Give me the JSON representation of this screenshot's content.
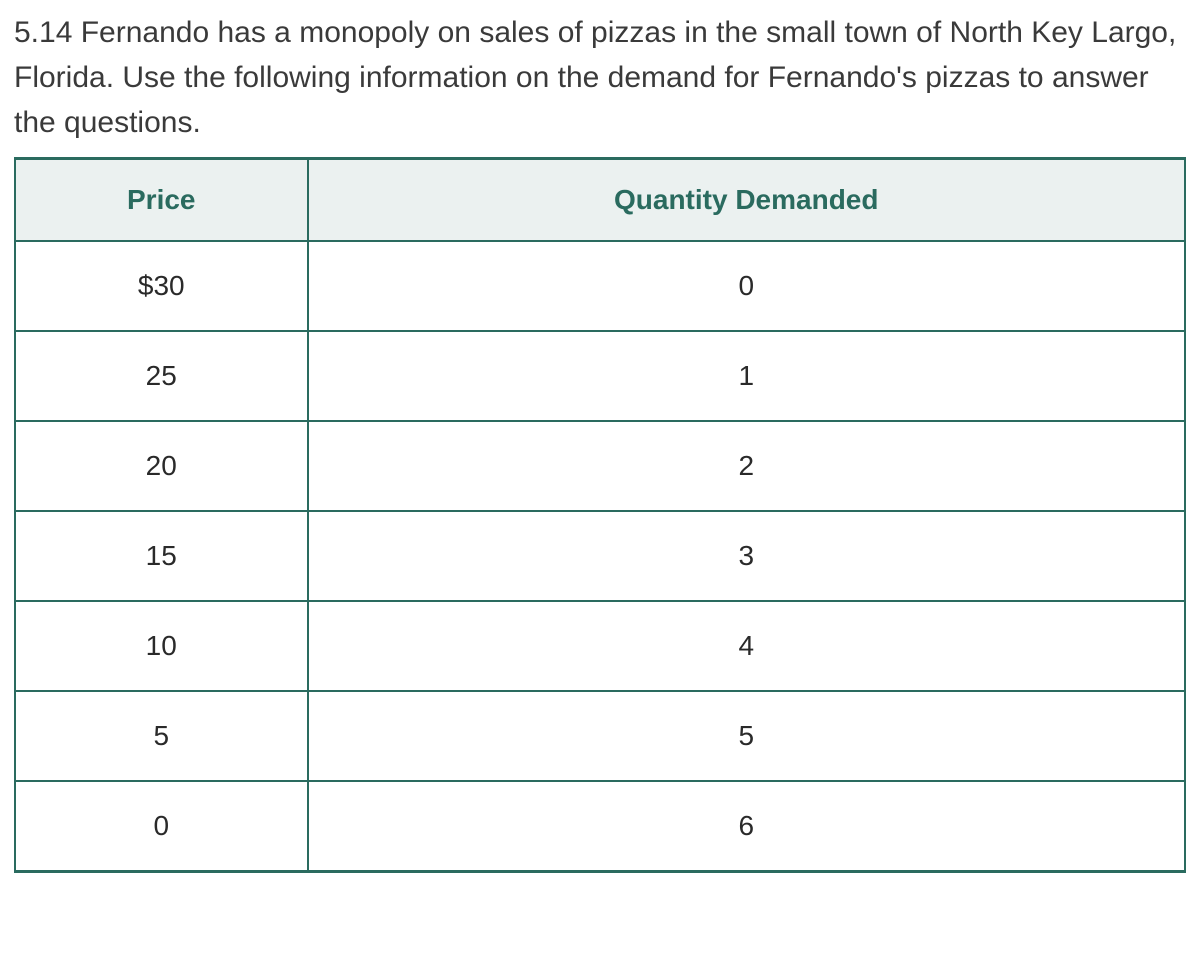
{
  "question": {
    "text": "5.14 Fernando has a monopoly on sales of pizzas in the small town of North Key Largo, Florida. Use the following information on the demand for Fernando's pizzas to answer the questions."
  },
  "table": {
    "columns": [
      "Price",
      "Quantity Demanded"
    ],
    "rows": [
      [
        "$30",
        "0"
      ],
      [
        "25",
        "1"
      ],
      [
        "20",
        "2"
      ],
      [
        "15",
        "3"
      ],
      [
        "10",
        "4"
      ],
      [
        "5",
        "5"
      ],
      [
        "0",
        "6"
      ]
    ],
    "header_background_color": "#ebf1f0",
    "header_text_color": "#2a6b5f",
    "border_color": "#2a6b5f",
    "cell_text_color": "#2a2a2a",
    "background_color": "#ffffff",
    "header_fontsize": 28,
    "cell_fontsize": 28,
    "column_widths_percent": [
      25,
      75
    ]
  },
  "typography": {
    "question_fontsize": 30,
    "question_color": "#3a3a3a",
    "font_family": "Arial, Helvetica, sans-serif"
  }
}
